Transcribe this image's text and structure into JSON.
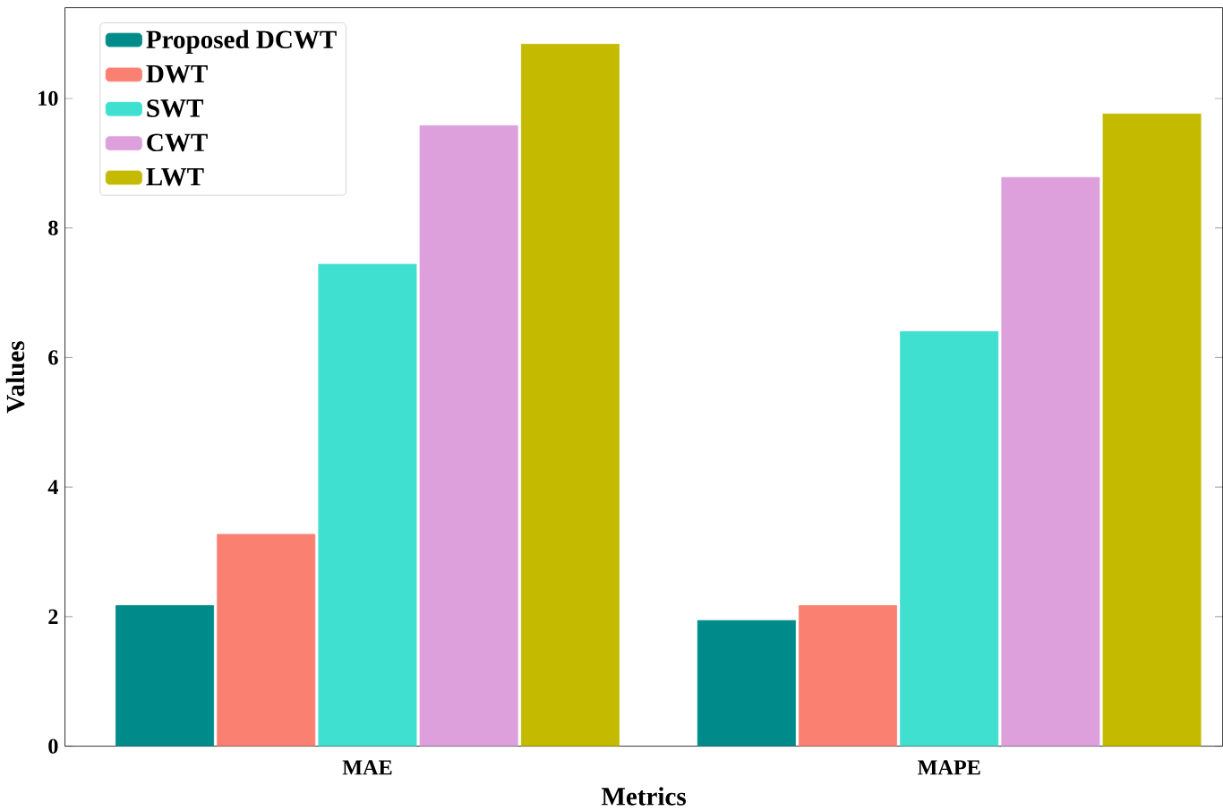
{
  "chart_data": {
    "type": "bar",
    "xlabel": "Metrics",
    "ylabel": "Values",
    "categories": [
      "MAE",
      "MAPE"
    ],
    "series": [
      {
        "name": "Proposed DCWT",
        "color": "#008b8b",
        "values": [
          2.17,
          1.94
        ]
      },
      {
        "name": "DWT",
        "color": "#fa8072",
        "values": [
          3.27,
          2.17
        ]
      },
      {
        "name": "SWT",
        "color": "#40e0d0",
        "values": [
          7.44,
          6.4
        ]
      },
      {
        "name": "CWT",
        "color": "#dda0dd",
        "values": [
          9.58,
          8.78
        ]
      },
      {
        "name": "LWT",
        "color": "#c4bb00",
        "values": [
          10.84,
          9.76
        ]
      }
    ],
    "ylim": [
      0,
      11.4
    ],
    "yticks": [
      0,
      2,
      4,
      6,
      8,
      10
    ],
    "legend": "top left",
    "grid": false
  }
}
